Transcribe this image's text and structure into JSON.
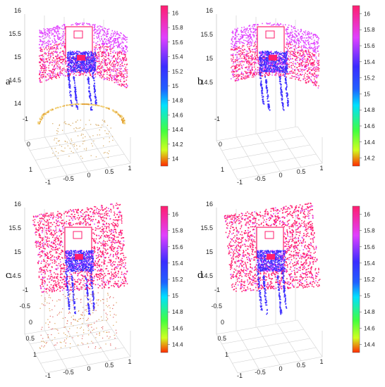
{
  "figure": {
    "panels": [
      {
        "id": "a",
        "label": "a",
        "zticks": [
          "16",
          "15.5",
          "15",
          "14.5",
          "14"
        ],
        "yticks": [
          "-1",
          "0",
          "1"
        ],
        "xticks": [
          "-1",
          "-0.5",
          "0",
          "0.5",
          "1"
        ],
        "colorbar_ticks": [
          "16",
          "15.8",
          "15.6",
          "15.4",
          "15.2",
          "15",
          "14.8",
          "14.6",
          "14.4",
          "14.2",
          "14"
        ],
        "colorbar_range": [
          13.9,
          16.1
        ],
        "has_ring": true,
        "surface": "curved",
        "has_ground_scatter": true
      },
      {
        "id": "b",
        "label": "b",
        "zticks": [
          "16",
          "15.5",
          "15",
          "14.5"
        ],
        "yticks": [
          "-1",
          "0",
          "1"
        ],
        "xticks": [
          "-1",
          "-0.5",
          "0",
          "0.5",
          "1"
        ],
        "colorbar_ticks": [
          "16",
          "15.8",
          "15.6",
          "15.4",
          "15.2",
          "15",
          "14.8",
          "14.6",
          "14.4",
          "14.2"
        ],
        "colorbar_range": [
          14.1,
          16.1
        ],
        "has_ring": false,
        "surface": "curved",
        "has_ground_scatter": false
      },
      {
        "id": "c",
        "label": "c",
        "zticks": [
          "16",
          "15.5",
          "15",
          "14.5"
        ],
        "yticks": [
          "-1",
          "-0.5",
          "0",
          "0.5",
          "1"
        ],
        "xticks": [
          "-1",
          "-0.5",
          "0",
          "0.5",
          "1"
        ],
        "colorbar_ticks": [
          "16",
          "15.8",
          "15.6",
          "15.4",
          "15.2",
          "15",
          "14.8",
          "14.6",
          "14.4"
        ],
        "colorbar_range": [
          14.3,
          16.1
        ],
        "has_ring": false,
        "surface": "flat",
        "has_ground_scatter": true
      },
      {
        "id": "d",
        "label": "d",
        "zticks": [
          "16",
          "15.5",
          "15",
          "14.5"
        ],
        "yticks": [
          "-1",
          "-0.5",
          "0",
          "0.5",
          "1"
        ],
        "xticks": [
          "-1",
          "-0.5",
          "0",
          "0.5",
          "1"
        ],
        "colorbar_ticks": [
          "16",
          "15.8",
          "15.6",
          "15.4",
          "15.2",
          "15",
          "14.8",
          "14.6",
          "14.4"
        ],
        "colorbar_range": [
          14.3,
          16.1
        ],
        "has_ring": false,
        "surface": "flat",
        "has_ground_scatter": false
      }
    ]
  },
  "colors": {
    "top": "#ff1e6e",
    "upper": "#e040ff",
    "mid": "#3a2cff",
    "lower": "#00e0ff",
    "low": "#40ff40",
    "bottom": "#ff2a00",
    "ground": "#e8a020"
  }
}
